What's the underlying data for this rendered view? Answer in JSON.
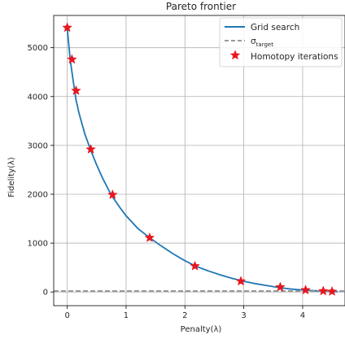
{
  "chart_data": {
    "type": "line",
    "title": "Pareto frontier",
    "xlabel": "Penalty(λ)",
    "ylabel": "Fidelity(λ)",
    "xlim": [
      -0.23,
      4.72
    ],
    "ylim": [
      -280,
      5660
    ],
    "x_ticks": [
      0,
      1,
      2,
      3,
      4
    ],
    "y_ticks": [
      0,
      1000,
      2000,
      3000,
      4000,
      5000
    ],
    "grid": true,
    "legend_position": "top-right",
    "legend": {
      "grid_label": "Grid search",
      "sigma_symbol": "σ",
      "sigma_sub": "target",
      "homotopy_label": "Homotopy iterations"
    },
    "series": [
      {
        "name": "Grid search",
        "style": "line",
        "color": "#1f77b4",
        "x": [
          0.0,
          0.05,
          0.1,
          0.15,
          0.2,
          0.3,
          0.4,
          0.5,
          0.6,
          0.75,
          0.9,
          1.0,
          1.2,
          1.4,
          1.6,
          1.8,
          2.0,
          2.2,
          2.4,
          2.6,
          2.8,
          3.0,
          3.2,
          3.4,
          3.6,
          3.8,
          4.0,
          4.2,
          4.4,
          4.6
        ],
        "y": [
          5400,
          4760,
          4330,
          3930,
          3660,
          3230,
          2900,
          2600,
          2330,
          1980,
          1720,
          1560,
          1300,
          1110,
          940,
          780,
          640,
          520,
          430,
          350,
          280,
          220,
          170,
          130,
          90,
          60,
          40,
          25,
          15,
          8
        ]
      },
      {
        "name": "σ_target",
        "style": "dashed",
        "color": "#8c8c8c",
        "y": 20
      },
      {
        "name": "Homotopy iterations",
        "style": "star",
        "color": "#e8171e",
        "x": [
          0.0,
          0.08,
          0.15,
          0.4,
          0.77,
          1.4,
          2.17,
          2.95,
          3.62,
          4.05,
          4.35,
          4.5
        ],
        "y": [
          5410,
          4760,
          4120,
          2920,
          1990,
          1110,
          530,
          220,
          100,
          40,
          20,
          10
        ]
      }
    ]
  }
}
